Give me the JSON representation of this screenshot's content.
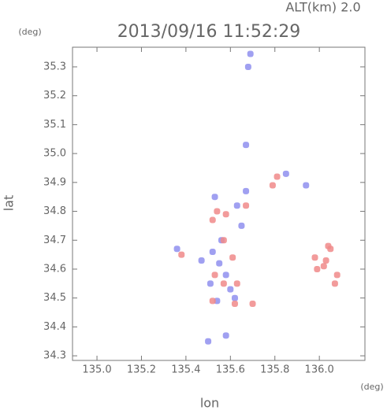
{
  "chart_data": {
    "type": "scatter",
    "title": "2013/09/16 11:52:29",
    "subtitle": "ALT(km) 2.0",
    "x_label": "lon",
    "y_label": "lat",
    "x_unit": "(deg)",
    "y_unit": "(deg)",
    "xlim": [
      134.89,
      136.205
    ],
    "ylim": [
      34.284,
      35.368
    ],
    "xticks": [
      {
        "value": 135,
        "label": "135.0"
      },
      135.2,
      135.4,
      135.6,
      135.8,
      {
        "value": 136,
        "label": "136.0"
      }
    ],
    "yticks": [
      34.3,
      34.4,
      34.5,
      34.6,
      34.7,
      34.8,
      34.9,
      {
        "value": 35,
        "label": "35.0"
      },
      35.1,
      35.2,
      35.3
    ],
    "series": [
      {
        "color": "#8f8fef",
        "x": [
          135.69,
          135.68,
          135.67,
          135.85,
          135.94,
          135.67,
          135.53,
          135.65,
          135.36,
          135.52,
          135.47,
          135.55,
          135.58,
          135.51,
          135.62,
          135.54,
          135.6,
          135.56,
          135.63,
          135.5,
          135.58
        ],
        "values": [
          35.345,
          35.3,
          35.03,
          34.93,
          34.89,
          34.87,
          34.85,
          34.75,
          34.67,
          34.66,
          34.63,
          34.62,
          34.58,
          34.55,
          34.5,
          34.49,
          34.53,
          34.7,
          34.82,
          34.35,
          34.37
        ]
      },
      {
        "color": "#f08a8a",
        "x": [
          135.81,
          135.79,
          135.54,
          135.58,
          135.67,
          135.52,
          135.57,
          135.38,
          135.61,
          135.53,
          135.57,
          135.63,
          135.62,
          135.52,
          135.7,
          136.05,
          136.03,
          135.99,
          136.08,
          136.04,
          136.07,
          136.02,
          135.98
        ],
        "values": [
          34.92,
          34.89,
          34.8,
          34.79,
          34.82,
          34.77,
          34.7,
          34.65,
          34.64,
          34.58,
          34.55,
          34.55,
          34.48,
          34.49,
          34.48,
          34.67,
          34.63,
          34.6,
          34.58,
          34.68,
          34.55,
          34.61,
          34.64
        ]
      }
    ]
  }
}
